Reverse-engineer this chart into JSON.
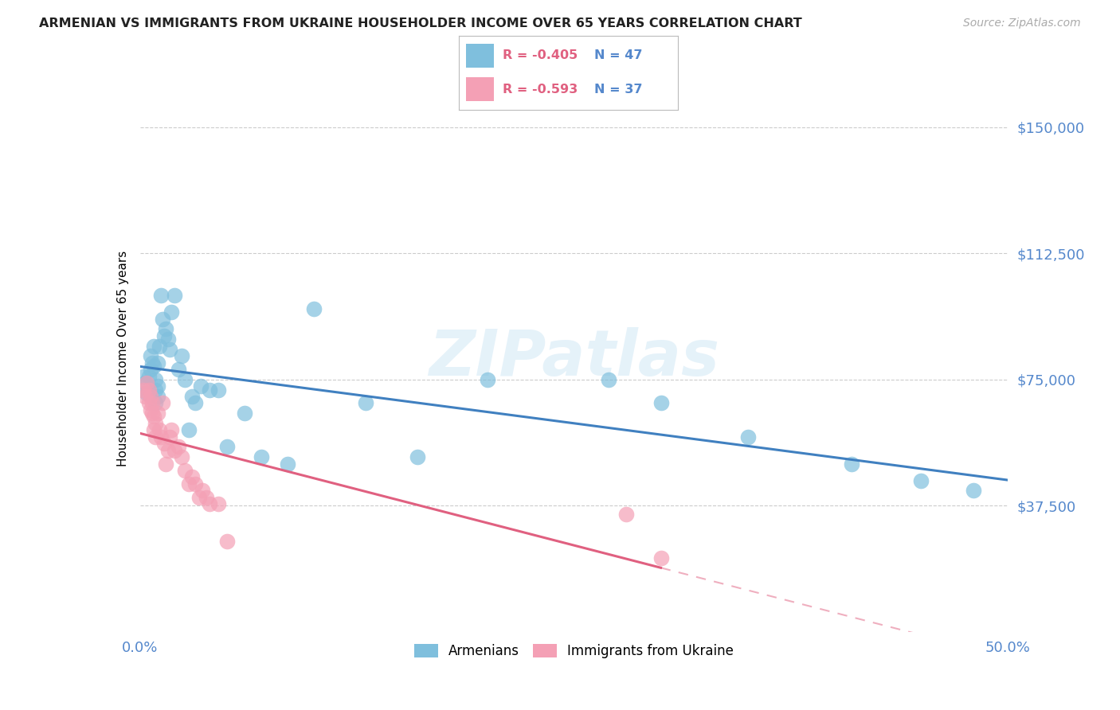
{
  "title": "ARMENIAN VS IMMIGRANTS FROM UKRAINE HOUSEHOLDER INCOME OVER 65 YEARS CORRELATION CHART",
  "source": "Source: ZipAtlas.com",
  "ylabel": "Householder Income Over 65 years",
  "ytick_labels": [
    "$37,500",
    "$75,000",
    "$112,500",
    "$150,000"
  ],
  "ytick_values": [
    37500,
    75000,
    112500,
    150000
  ],
  "ylim": [
    0,
    162500
  ],
  "xlim": [
    0.0,
    0.5
  ],
  "xtick_values": [
    0.0,
    0.5
  ],
  "xtick_labels": [
    "0.0%",
    "50.0%"
  ],
  "watermark": "ZIPatlas",
  "legend_armenians_R": "-0.405",
  "legend_armenians_N": "47",
  "legend_ukraine_R": "-0.593",
  "legend_ukraine_N": "37",
  "blue_scatter_color": "#7fbfdd",
  "pink_scatter_color": "#f4a0b5",
  "line_blue": "#4080c0",
  "line_pink": "#e06080",
  "title_color": "#222222",
  "source_color": "#aaaaaa",
  "ytick_color": "#5588cc",
  "xtick_color": "#5588cc",
  "grid_color": "#cccccc",
  "armenians_x": [
    0.002,
    0.003,
    0.004,
    0.005,
    0.006,
    0.006,
    0.007,
    0.008,
    0.008,
    0.009,
    0.009,
    0.009,
    0.01,
    0.01,
    0.01,
    0.011,
    0.012,
    0.013,
    0.014,
    0.015,
    0.016,
    0.017,
    0.018,
    0.02,
    0.022,
    0.024,
    0.026,
    0.028,
    0.03,
    0.032,
    0.035,
    0.04,
    0.045,
    0.05,
    0.06,
    0.07,
    0.085,
    0.1,
    0.13,
    0.16,
    0.2,
    0.27,
    0.3,
    0.35,
    0.41,
    0.45,
    0.48
  ],
  "armenians_y": [
    76000,
    74000,
    71000,
    76000,
    78000,
    82000,
    80000,
    79000,
    85000,
    75000,
    72000,
    68000,
    80000,
    73000,
    70000,
    85000,
    100000,
    93000,
    88000,
    90000,
    87000,
    84000,
    95000,
    100000,
    78000,
    82000,
    75000,
    60000,
    70000,
    68000,
    73000,
    72000,
    72000,
    55000,
    65000,
    52000,
    50000,
    96000,
    68000,
    52000,
    75000,
    75000,
    68000,
    58000,
    50000,
    45000,
    42000
  ],
  "ukraine_x": [
    0.002,
    0.003,
    0.004,
    0.005,
    0.005,
    0.006,
    0.006,
    0.007,
    0.007,
    0.008,
    0.008,
    0.009,
    0.009,
    0.01,
    0.011,
    0.012,
    0.013,
    0.014,
    0.015,
    0.016,
    0.017,
    0.018,
    0.02,
    0.022,
    0.024,
    0.026,
    0.028,
    0.03,
    0.032,
    0.034,
    0.036,
    0.038,
    0.04,
    0.045,
    0.05,
    0.28,
    0.3
  ],
  "ukraine_y": [
    72000,
    70000,
    74000,
    68000,
    72000,
    66000,
    70000,
    68000,
    65000,
    64000,
    60000,
    62000,
    58000,
    65000,
    60000,
    58000,
    68000,
    56000,
    50000,
    54000,
    58000,
    60000,
    54000,
    55000,
    52000,
    48000,
    44000,
    46000,
    44000,
    40000,
    42000,
    40000,
    38000,
    38000,
    27000,
    35000,
    22000
  ]
}
